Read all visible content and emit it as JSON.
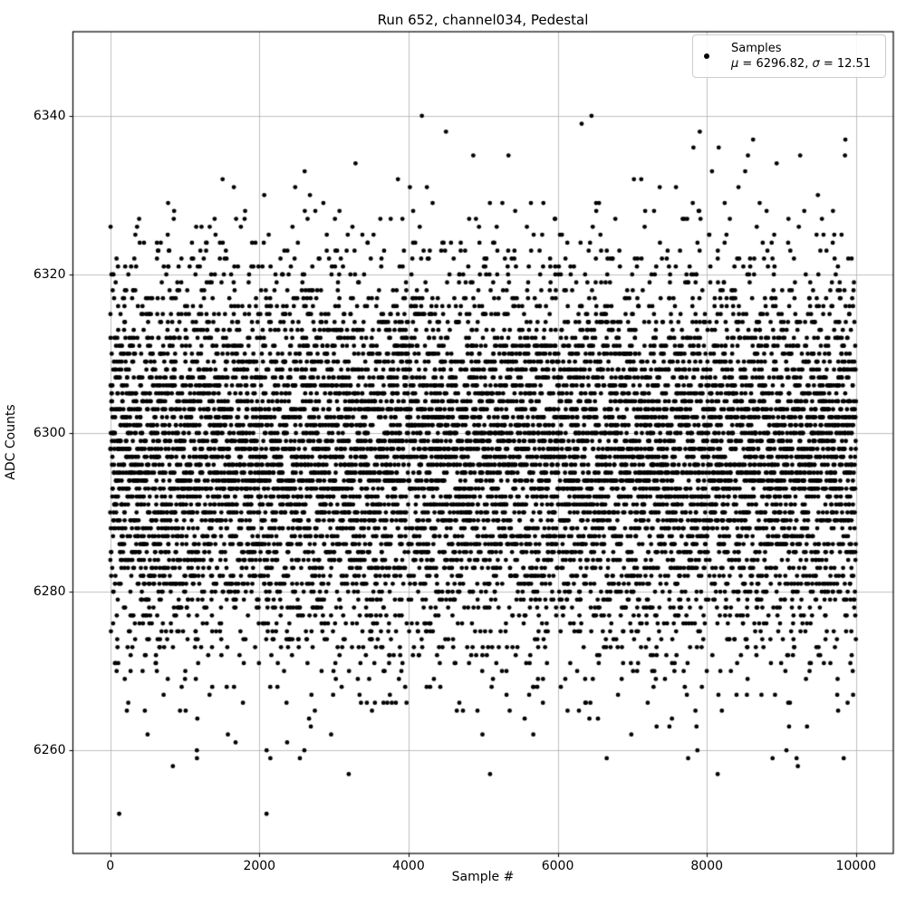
{
  "title": "Run 652, channel034, Pedestal",
  "axes": {
    "xlabel": "Sample #",
    "ylabel": "ADC Counts",
    "x_ticks": [
      0,
      2000,
      4000,
      6000,
      8000,
      10000
    ],
    "y_ticks": [
      6260,
      6280,
      6300,
      6320,
      6340
    ],
    "xlim": [
      -500,
      10500
    ],
    "ylim": [
      6247.0,
      6350.6
    ],
    "grid": true
  },
  "legend": {
    "line1": "Samples",
    "mu_symbol": "μ",
    "mu_rest": " = 6296.82, ",
    "sigma_symbol": "σ",
    "sigma_rest": " = 12.51",
    "marker": "black-dot"
  },
  "stats": {
    "mean": 6296.82,
    "sigma": 12.51
  },
  "chart_data": {
    "type": "scatter",
    "title": "Run 652, channel034, Pedestal",
    "xlabel": "Sample #",
    "ylabel": "ADC Counts",
    "legend_entries": [
      "Samples",
      "μ = 6296.82, σ = 12.51"
    ],
    "legend_position": "upper right",
    "n_points": 10000,
    "x_start": 0,
    "x_end": 9999,
    "y_distribution": {
      "type": "gaussian",
      "mean": 6296.82,
      "sigma": 12.51
    },
    "y_quantization": "integer ADC counts",
    "y_observed_min": 6249,
    "y_observed_max": 6341,
    "seed": 652,
    "x_ticks": [
      0,
      2000,
      4000,
      6000,
      8000,
      10000
    ],
    "y_ticks": [
      6260,
      6280,
      6300,
      6320,
      6340
    ],
    "xlim": [
      -500,
      10500
    ],
    "ylim": [
      6247.0,
      6350.6
    ],
    "grid": true,
    "marker": {
      "shape": "circle",
      "color": "#000000",
      "radius_px": 2.4
    }
  },
  "colors": {
    "marker": "#000000",
    "grid": "#b0b0b0",
    "spine": "#000000",
    "background": "#ffffff",
    "legend_border": "#cccccc"
  }
}
